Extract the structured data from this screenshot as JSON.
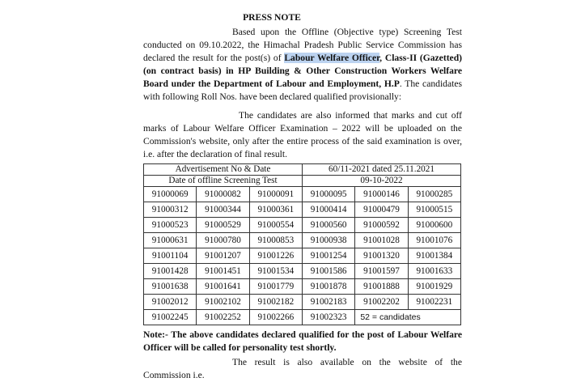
{
  "title": "PRESS NOTE",
  "para1": {
    "intro": "Based upon the Offline (Objective type) Screening Test conducted on 09.10.2022, the Himachal Pradesh Public Service Commission has declared the result for the post(s) of ",
    "post_highlighted": "Labour Welfare Officer",
    "post_rest": ", Class-II (Gazetted) (on contract basis) in HP Building & Other Construction Workers Welfare Board under the Department of Labour and Employment, H.P",
    "outro": ". The candidates with following Roll Nos. have been declared qualified provisionally:"
  },
  "para2": "The candidates are also informed that marks and cut off marks of Labour Welfare Officer Examination – 2022 will be uploaded on the Commission's website, only after the entire process of the said examination is over, i.e. after the declaration of final result.",
  "table": {
    "adv_label": "Advertisement No & Date",
    "adv_value": "60/11-2021 dated 25.11.2021",
    "test_label": "Date of offline Screening Test",
    "test_value": "09-10-2022",
    "rows": [
      [
        "91000069",
        "91000082",
        "91000091",
        "91000095",
        "91000146",
        "91000285"
      ],
      [
        "91000312",
        "91000344",
        "91000361",
        "91000414",
        "91000479",
        "91000515"
      ],
      [
        "91000523",
        "91000529",
        "91000554",
        "91000560",
        "91000592",
        "91000600"
      ],
      [
        "91000631",
        "91000780",
        "91000853",
        "91000938",
        "91001028",
        "91001076"
      ],
      [
        "91001104",
        "91001207",
        "91001226",
        "91001254",
        "91001320",
        "91001384"
      ],
      [
        "91001428",
        "91001451",
        "91001534",
        "91001586",
        "91001597",
        "91001633"
      ],
      [
        "91001638",
        "91001641",
        "91001779",
        "91001878",
        "91001888",
        "91001929"
      ],
      [
        "91002012",
        "91002102",
        "91002182",
        "91002183",
        "91002202",
        "91002231"
      ],
      [
        "91002245",
        "91002252",
        "91002266",
        "91002323"
      ]
    ],
    "count_text": "52 = candidates"
  },
  "note": "Note:- The above candidates declared qualified for the post of Labour Welfare Officer will be called for personality test shortly.",
  "last_line": "The result is also available on the website of the Commission i.e.",
  "colors": {
    "highlight": "#bcd3f0"
  }
}
